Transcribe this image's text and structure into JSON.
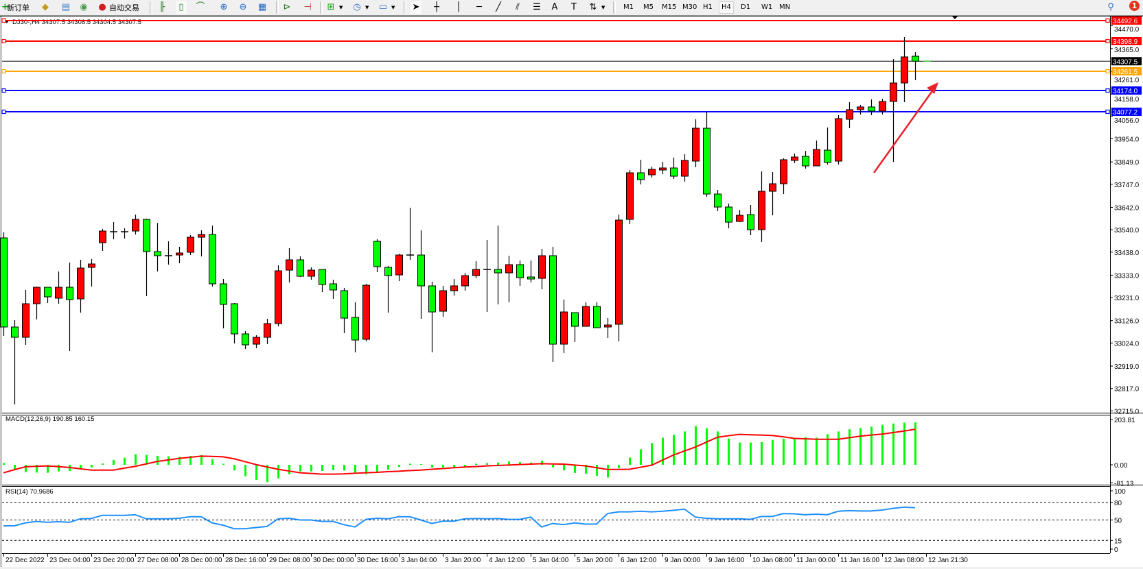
{
  "toolbar": {
    "new_order_label": "新订单",
    "auto_trading_label": "自动交易",
    "icons": [
      "new-order-icon",
      "market-watch-icon",
      "navigator-icon",
      "signals-icon",
      "auto-trading-icon",
      "bar-chart-icon",
      "candlestick-icon",
      "line-chart-icon",
      "zoom-in-icon",
      "zoom-out-icon",
      "tile-windows-icon",
      "auto-scroll-icon",
      "chart-shift-icon",
      "indicators-icon",
      "periods-icon",
      "templates-icon",
      "cursor-icon",
      "crosshair-icon",
      "vertical-line-icon",
      "horizontal-line-icon",
      "trendline-icon",
      "equidistant-channel-icon",
      "fibonacci-icon",
      "text-icon",
      "text-label-icon",
      "arrows-icon",
      "search-icon",
      "notifications-icon"
    ],
    "timeframes": [
      "M1",
      "M5",
      "M15",
      "M30",
      "H1",
      "H4",
      "D1",
      "W1",
      "MN"
    ],
    "active_timeframe": "H4",
    "notification_count": "1"
  },
  "chart": {
    "symbol_info": "DJ30-,H4  34307.5 34308.5 34304.5 34307.5",
    "colors": {
      "bull": "#ff0000",
      "bear": "#00ff00",
      "wick": "#000000",
      "background": "#ffffff"
    },
    "price_axis_labels": [
      "34470.0",
      "34365.0",
      "34261.0",
      "34158.0",
      "34056.0",
      "33954.0",
      "33849.0",
      "33747.0",
      "33642.0",
      "33540.0",
      "33438.0",
      "33333.0",
      "33231.0",
      "33126.0",
      "33024.0",
      "32919.0",
      "32817.0",
      "32715.0"
    ],
    "horizontal_lines": [
      {
        "price": "34492.6",
        "color": "#ff0000"
      },
      {
        "price": "34398.9",
        "color": "#ff0000"
      },
      {
        "price": "34261.5",
        "color": "#ffa500"
      },
      {
        "price": "34174.0",
        "color": "#0000ff"
      },
      {
        "price": "34077.2",
        "color": "#0000ff"
      }
    ],
    "current_price": {
      "price": "34307.5",
      "color": "#000000"
    },
    "annotation_arrow_color": "#e8202a",
    "time_labels": [
      "22 Dec 2022",
      "23 Dec 04:00",
      "23 Dec 20:00",
      "27 Dec 08:00",
      "28 Dec 00:00",
      "28 Dec 16:00",
      "29 Dec 08:00",
      "30 Dec 00:00",
      "30 Dec 16:00",
      "3 Jan 04:00",
      "3 Jan 20:00",
      "4 Jan 12:00",
      "5 Jan 04:00",
      "5 Jan 20:00",
      "6 Jan 12:00",
      "9 Jan 00:00",
      "9 Jan 16:00",
      "10 Jan 08:00",
      "11 Jan 00:00",
      "11 Jan 16:00",
      "12 Jan 08:00",
      "12 Jan 21:30"
    ]
  },
  "macd": {
    "label": "MACD(12,26,9) 190.85 160.15",
    "axis_labels": [
      "203.81",
      "0.00",
      "-81.13"
    ],
    "hist_color": "#00ff00",
    "signal_color": "#ff0000"
  },
  "rsi": {
    "label": "RSI(14) 70.9686",
    "axis_labels": [
      "100",
      "80",
      "50",
      "15",
      "0"
    ],
    "levels": [
      80,
      50,
      15
    ],
    "line_color": "#1e90ff"
  },
  "chart_data": [
    {
      "type": "candlestick",
      "title": "DJ30-,H4",
      "ylim": [
        32715.0,
        34492.6
      ],
      "ohlc": [
        [
          33502.8,
          33527.8,
          33056.4,
          33097.0
        ],
        [
          33097.0,
          33128.2,
          32744.2,
          33050.1
        ],
        [
          33050.1,
          33265.6,
          33015.8,
          33203.1
        ],
        [
          33203.1,
          33281.2,
          33131.3,
          33278.0
        ],
        [
          33278.0,
          33278.0,
          33206.2,
          33234.3
        ],
        [
          33228.1,
          33349.8,
          33203.1,
          33278.0
        ],
        [
          33278.0,
          33390.4,
          32987.7,
          33221.8
        ],
        [
          33225.0,
          33402.9,
          33162.5,
          33365.5
        ],
        [
          33368.6,
          33406.0,
          33281.2,
          33384.2
        ],
        [
          33481.0,
          33543.4,
          33443.5,
          33534.1
        ],
        [
          33530.9,
          33574.6,
          33496.6,
          33530.9
        ],
        [
          33530.9,
          33546.5,
          33499.7,
          33530.9
        ],
        [
          33534.1,
          33609.0,
          33518.4,
          33587.1
        ],
        [
          33587.1,
          33590.3,
          33237.5,
          33440.4
        ],
        [
          33440.4,
          33571.5,
          33349.8,
          33421.7
        ],
        [
          33421.7,
          33487.2,
          33381.1,
          33421.7
        ],
        [
          33424.8,
          33462.2,
          33387.3,
          33434.1
        ],
        [
          33437.3,
          33515.3,
          33424.8,
          33506.0
        ],
        [
          33506.0,
          33537.2,
          33418.5,
          33518.4
        ],
        [
          33518.4,
          33559.0,
          33281.2,
          33293.7
        ],
        [
          33293.7,
          33315.5,
          33090.7,
          33200.0
        ],
        [
          33203.1,
          33206.2,
          33022.0,
          33065.7
        ],
        [
          33065.7,
          33078.2,
          32997.1,
          33015.8
        ],
        [
          33018.9,
          33059.5,
          33000.2,
          33050.1
        ],
        [
          33050.1,
          33134.4,
          33018.9,
          33112.6
        ],
        [
          33112.6,
          33377.9,
          33100.1,
          33353.0
        ],
        [
          33356.1,
          33456.0,
          33299.9,
          33402.9
        ],
        [
          33402.9,
          33418.5,
          33324.9,
          33328.0
        ],
        [
          33328.0,
          33368.6,
          33312.4,
          33356.1
        ],
        [
          33359.2,
          33359.2,
          33256.2,
          33290.5
        ],
        [
          33293.7,
          33312.4,
          33225.0,
          33265.6
        ],
        [
          33262.4,
          33274.9,
          33068.9,
          33137.5
        ],
        [
          33140.7,
          33209.4,
          32981.4,
          33037.6
        ],
        [
          33040.8,
          33293.7,
          33031.4,
          33287.4
        ],
        [
          33487.2,
          33496.6,
          33346.7,
          33371.7
        ],
        [
          33368.6,
          33374.8,
          33162.5,
          33331.1
        ],
        [
          33334.2,
          33431.0,
          33306.1,
          33424.8
        ],
        [
          33424.8,
          33640.2,
          33402.9,
          33424.8
        ],
        [
          33424.8,
          33537.2,
          33134.4,
          33284.3
        ],
        [
          33284.3,
          33303.0,
          32981.4,
          33165.6
        ],
        [
          33168.8,
          33284.3,
          33143.8,
          33262.4
        ],
        [
          33262.4,
          33315.5,
          33240.6,
          33284.3
        ],
        [
          33284.3,
          33343.6,
          33262.4,
          33331.1
        ],
        [
          33331.1,
          33396.7,
          33318.6,
          33359.2
        ],
        [
          33359.2,
          33493.5,
          33165.6,
          33359.2
        ],
        [
          33359.2,
          33559.0,
          33200.0,
          33343.6
        ],
        [
          33343.6,
          33421.7,
          33209.4,
          33381.1
        ],
        [
          33381.1,
          33399.8,
          33284.3,
          33321.7
        ],
        [
          33324.9,
          33399.8,
          33299.9,
          33315.5
        ],
        [
          33318.6,
          33452.9,
          33268.7,
          33421.7
        ],
        [
          33421.7,
          33462.2,
          32937.7,
          33018.9
        ],
        [
          33018.9,
          33221.8,
          32978.3,
          33165.6
        ],
        [
          33162.5,
          33162.5,
          33028.3,
          33100.1
        ],
        [
          33100.1,
          33209.4,
          33100.1,
          33190.6
        ],
        [
          33190.6,
          33209.4,
          33093.8,
          33093.8
        ],
        [
          33097.0,
          33137.5,
          33047.0,
          33106.3
        ],
        [
          33109.4,
          33609.0,
          33031.4,
          33584.0
        ],
        [
          33587.1,
          33811.9,
          33565.3,
          33799.4
        ],
        [
          33799.4,
          33858.8,
          33746.4,
          33768.2
        ],
        [
          33790.1,
          33827.5,
          33777.6,
          33815.0
        ],
        [
          33811.9,
          33849.4,
          33793.2,
          33821.3
        ],
        [
          33821.3,
          33868.1,
          33771.3,
          33783.8
        ],
        [
          33783.8,
          33883.7,
          33758.8,
          33855.6
        ],
        [
          33852.5,
          34043.0,
          33824.4,
          34002.4
        ],
        [
          34002.4,
          34077.3,
          33690.2,
          33702.6
        ],
        [
          33702.6,
          33721.4,
          33624.6,
          33643.3
        ],
        [
          33643.3,
          33658.9,
          33546.5,
          33574.6
        ],
        [
          33577.8,
          33630.8,
          33574.6,
          33605.9
        ],
        [
          33609.0,
          33652.7,
          33515.3,
          33540.3
        ],
        [
          33540.3,
          33805.7,
          33484.1,
          33715.1
        ],
        [
          33715.1,
          33802.6,
          33605.9,
          33749.5
        ],
        [
          33749.5,
          33865.0,
          33702.6,
          33858.8
        ],
        [
          33855.6,
          33886.8,
          33843.1,
          33871.2
        ],
        [
          33874.4,
          33899.3,
          33818.2,
          33830.7
        ],
        [
          33830.7,
          33946.2,
          33830.7,
          33905.6
        ],
        [
          33902.5,
          34005.5,
          33836.9,
          33846.3
        ],
        [
          33852.5,
          34061.7,
          33836.9,
          34046.1
        ],
        [
          34043.0,
          34121.0,
          34002.4,
          34086.7
        ],
        [
          34086.7,
          34108.5,
          34064.8,
          34099.2
        ],
        [
          34099.2,
          34133.5,
          34061.7,
          34080.4
        ],
        [
          34080.4,
          34136.6,
          34064.8,
          34124.1
        ],
        [
          34124.1,
          34317.7,
          33849.4,
          34208.4
        ],
        [
          34208.4,
          34417.6,
          34121.0,
          34327.1
        ],
        [
          34330.2,
          34348.9,
          34220.9,
          34307.5
        ]
      ]
    },
    {
      "type": "bar+line",
      "title": "MACD(12,26,9)",
      "ylim": [
        -81.13,
        203.81
      ],
      "histogram": [
        8,
        -20,
        -33,
        -35,
        -36,
        -30,
        -28,
        -20,
        -12,
        6,
        22,
        32,
        48,
        45,
        40,
        38,
        36,
        40,
        44,
        25,
        5,
        -25,
        -52,
        -68,
        -78,
        -62,
        -43,
        -30,
        -30,
        -28,
        -24,
        -26,
        -37,
        -42,
        -35,
        -22,
        -10,
        5,
        3,
        -12,
        -12,
        -12,
        -8,
        5,
        8,
        10,
        15,
        12,
        10,
        18,
        -12,
        -25,
        -37,
        -40,
        -50,
        -57,
        -15,
        33,
        70,
        98,
        122,
        135,
        150,
        175,
        165,
        150,
        118,
        100,
        100,
        102,
        112,
        118,
        118,
        125,
        122,
        138,
        150,
        160,
        166,
        172,
        180,
        186,
        190,
        190.85
      ],
      "signal": [
        -36,
        -22,
        -9,
        -7,
        -5,
        -8,
        -12,
        -18,
        -24,
        -24,
        -24,
        -15,
        -7,
        4,
        15,
        22,
        29,
        34,
        39,
        38,
        36,
        27,
        14,
        1,
        -10,
        -20,
        -28,
        -36,
        -39,
        -42,
        -42,
        -41,
        -38,
        -36,
        -34,
        -31,
        -29,
        -26,
        -24,
        -20,
        -17,
        -13,
        -10,
        -8,
        -5,
        -3,
        -1,
        1,
        3,
        5,
        4,
        3,
        -1,
        -5,
        -13,
        -21,
        -21,
        -20,
        -11,
        -2,
        21,
        44,
        62,
        80,
        102,
        124,
        131,
        137,
        135,
        134,
        132,
        126,
        119,
        117,
        115,
        115,
        115,
        122,
        129,
        134,
        138,
        145,
        152,
        160.15
      ]
    },
    {
      "type": "line",
      "title": "RSI(14)",
      "ylim": [
        0,
        100
      ],
      "values": [
        40,
        40,
        45,
        47.5,
        46,
        47,
        46,
        52,
        52.5,
        58,
        58,
        58,
        59,
        52,
        52,
        52,
        53,
        55.6,
        55.6,
        45,
        41,
        35,
        35,
        37,
        39,
        52,
        53,
        50,
        50,
        47.5,
        47.5,
        42,
        38,
        51,
        53,
        52,
        55.6,
        55.6,
        50,
        44,
        48,
        48,
        52,
        52.5,
        52,
        52.5,
        51,
        51,
        55,
        38,
        44,
        42,
        45,
        43,
        43,
        61,
        64,
        64,
        65,
        64,
        65,
        66.6,
        68.7,
        55,
        53,
        52,
        52,
        52,
        51,
        56,
        56,
        61,
        60.6,
        59,
        60,
        59,
        65,
        66,
        65.5,
        65.5,
        67,
        70,
        72,
        70.97
      ]
    }
  ]
}
